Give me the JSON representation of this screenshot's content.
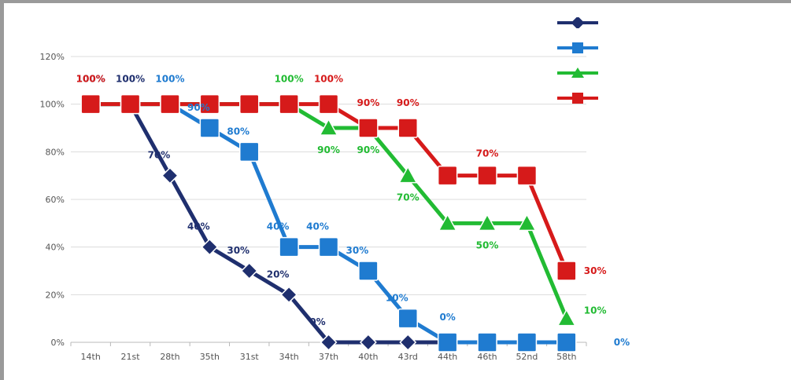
{
  "chart_data": {
    "type": "line",
    "categories": [
      "14th",
      "21st",
      "28th",
      "35th",
      "31st",
      "34th",
      "37th",
      "40th",
      "43rd",
      "44th",
      "46th",
      "52nd",
      "58th"
    ],
    "y_ticks": [
      "0%",
      "20%",
      "40%",
      "60%",
      "80%",
      "100%",
      "120%"
    ],
    "ylim": [
      0,
      120
    ],
    "grid": true,
    "legend_position": "top-right",
    "series": [
      {
        "name": "",
        "color": "#1f2f6e",
        "marker": "diamond",
        "values": [
          100,
          100,
          70,
          40,
          30,
          20,
          0,
          0,
          0,
          0,
          0,
          0,
          0
        ],
        "labels": [
          "100%",
          "100%",
          "70%",
          "40%",
          "30%",
          "20%",
          "0%",
          null,
          null,
          null,
          null,
          null,
          null
        ]
      },
      {
        "name": "",
        "color": "#1f7bd0",
        "marker": "square",
        "values": [
          100,
          100,
          100,
          90,
          80,
          40,
          40,
          30,
          10,
          0,
          0,
          0,
          0
        ],
        "labels": [
          null,
          null,
          "100%",
          "90%",
          "80%",
          "40%",
          "40%",
          "30%",
          "10%",
          "0%",
          null,
          null,
          "0%"
        ]
      },
      {
        "name": "",
        "color": "#22bb33",
        "marker": "triangle",
        "values": [
          100,
          100,
          100,
          100,
          100,
          100,
          90,
          90,
          70,
          50,
          50,
          50,
          10
        ],
        "labels": [
          null,
          null,
          null,
          null,
          null,
          "100%",
          "90%",
          "90%",
          "70%",
          null,
          "50%",
          null,
          "10%"
        ]
      },
      {
        "name": "",
        "color": "#d61a1a",
        "marker": "square",
        "values": [
          100,
          100,
          100,
          100,
          100,
          100,
          100,
          90,
          90,
          70,
          70,
          70,
          30
        ],
        "labels": [
          "100%",
          null,
          null,
          null,
          null,
          null,
          "100%",
          "90%",
          "90%",
          null,
          "70%",
          null,
          "30%"
        ]
      }
    ]
  }
}
